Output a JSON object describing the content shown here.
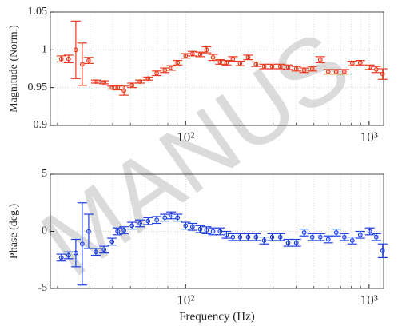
{
  "watermark": "MANUS",
  "chart_data": [
    {
      "type": "errorbar",
      "ylabel": "Magnitude (Norm.)",
      "color": "#e8391c",
      "log_x": true,
      "grid": true,
      "xlim": [
        18.3,
        1200
      ],
      "ylim": [
        0.9,
        1.05
      ],
      "xticks": [
        {
          "value": 100,
          "label": "10²"
        },
        {
          "value": 1000,
          "label": "10³"
        }
      ],
      "xminor": [
        20,
        30,
        40,
        50,
        60,
        70,
        80,
        90,
        200,
        300,
        400,
        500,
        600,
        700,
        800,
        900
      ],
      "yticks": [
        0.9,
        0.95,
        1,
        1.05
      ],
      "x": [
        21,
        23,
        25.2,
        27.3,
        29.6,
        32.4,
        35.9,
        39.7,
        42.6,
        46.1,
        51,
        56.4,
        62.4,
        69.6,
        77,
        83.4,
        90.4,
        100,
        109,
        120,
        130,
        141,
        154,
        167,
        181,
        198,
        219,
        242,
        268,
        296,
        328,
        362,
        401,
        443,
        490,
        542,
        599,
        662,
        733,
        810,
        895,
        1009,
        1094,
        1186
      ],
      "values": [
        0.988,
        0.988,
        1.0,
        0.981,
        0.986,
        0.958,
        0.957,
        0.95,
        0.95,
        0.946,
        0.953,
        0.958,
        0.962,
        0.969,
        0.973,
        0.976,
        0.983,
        0.992,
        0.995,
        0.994,
        1.0,
        0.99,
        0.984,
        0.983,
        0.988,
        0.982,
        0.99,
        0.981,
        0.978,
        0.978,
        0.978,
        0.977,
        0.975,
        0.973,
        0.975,
        0.987,
        0.971,
        0.971,
        0.971,
        0.982,
        0.983,
        0.977,
        0.974,
        0.968
      ],
      "errors": [
        0.004,
        0.005,
        0.038,
        0.028,
        0.004,
        0.002,
        0.002,
        0.002,
        0.003,
        0.006,
        0.003,
        0.002,
        0.002,
        0.003,
        0.003,
        0.003,
        0.003,
        0.003,
        0.003,
        0.003,
        0.004,
        0.004,
        0.003,
        0.003,
        0.003,
        0.003,
        0.003,
        0.003,
        0.003,
        0.003,
        0.003,
        0.003,
        0.003,
        0.003,
        0.003,
        0.004,
        0.003,
        0.003,
        0.003,
        0.003,
        0.003,
        0.003,
        0.004,
        0.007
      ]
    },
    {
      "type": "errorbar",
      "ylabel": "Phase (deg.)",
      "xlabel": "Frequency (Hz)",
      "color": "#1c3fe0",
      "log_x": true,
      "grid": true,
      "xlim": [
        18.3,
        1200
      ],
      "ylim": [
        -5,
        5
      ],
      "xticks": [
        {
          "value": 100,
          "label": "10²"
        },
        {
          "value": 1000,
          "label": "10³"
        }
      ],
      "xminor": [
        20,
        30,
        40,
        50,
        60,
        70,
        80,
        90,
        200,
        300,
        400,
        500,
        600,
        700,
        800,
        900
      ],
      "yticks": [
        -5,
        0,
        5
      ],
      "x": [
        21,
        23,
        25.2,
        27.3,
        29.6,
        32.4,
        35.9,
        39.7,
        42.6,
        46.1,
        51,
        56.4,
        62.4,
        69.6,
        77,
        83.4,
        90.4,
        100,
        109,
        120,
        130,
        141,
        154,
        167,
        181,
        198,
        219,
        242,
        268,
        296,
        328,
        362,
        401,
        443,
        490,
        542,
        599,
        662,
        733,
        810,
        895,
        1009,
        1094,
        1186
      ],
      "values": [
        -2.3,
        -2.1,
        -1.9,
        -1.1,
        0,
        -1.8,
        -1.6,
        -0.9,
        0,
        0.1,
        0.5,
        0.7,
        0.9,
        1.0,
        1.2,
        1.4,
        1.2,
        0.5,
        0.4,
        0.2,
        0.1,
        0,
        0,
        -0.3,
        -0.5,
        -0.5,
        -0.5,
        -0.5,
        -0.8,
        -0.5,
        -0.5,
        -1.0,
        -1.0,
        -0.1,
        -0.5,
        -0.5,
        -0.7,
        -0.1,
        -0.5,
        -0.8,
        -0.3,
        0,
        -0.5,
        -1.7
      ],
      "errors": [
        0.3,
        0.3,
        1.2,
        3.6,
        1.5,
        0.3,
        0.3,
        0.3,
        0.3,
        0.3,
        0.3,
        0.3,
        0.3,
        0.3,
        0.3,
        0.3,
        0.3,
        0.3,
        0.3,
        0.3,
        0.3,
        0.3,
        0.3,
        0.3,
        0.3,
        0.3,
        0.3,
        0.3,
        0.3,
        0.3,
        0.3,
        0.3,
        0.3,
        0.3,
        0.3,
        0.3,
        0.3,
        0.3,
        0.3,
        0.3,
        0.3,
        0.3,
        0.3,
        0.6
      ]
    }
  ]
}
